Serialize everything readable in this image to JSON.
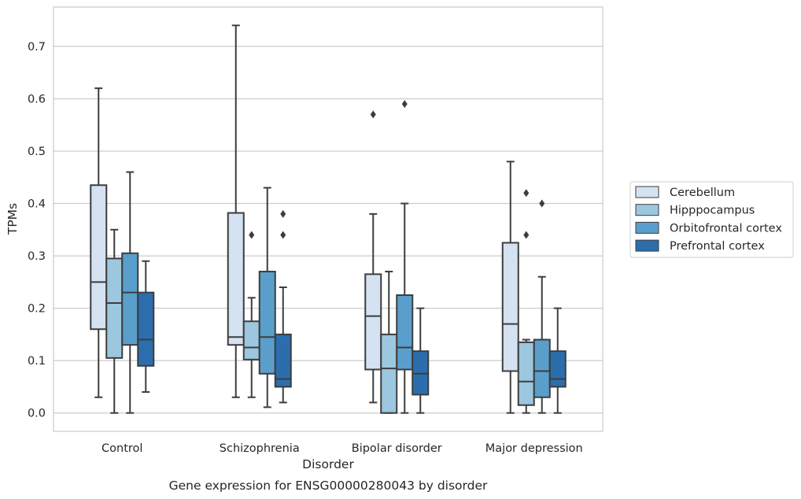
{
  "chart_data": {
    "type": "box",
    "title": "",
    "caption": "Gene expression for ENSG00000280043 by disorder",
    "xlabel": "Disorder",
    "ylabel": "TPMs",
    "ylim": [
      -0.035,
      0.775
    ],
    "yticks": [
      0.0,
      0.1,
      0.2,
      0.3,
      0.4,
      0.5,
      0.6,
      0.7
    ],
    "ytick_labels": [
      "0.0",
      "0.1",
      "0.2",
      "0.3",
      "0.4",
      "0.5",
      "0.6",
      "0.7"
    ],
    "grid": "horizontal",
    "legend_placement": "right",
    "categories": [
      "Control",
      "Schizophrenia",
      "Bipolar disorder",
      "Major depression"
    ],
    "series": [
      {
        "name": "Cerebellum",
        "color": "#d4e2f1",
        "boxes": [
          {
            "whislo": 0.03,
            "q1": 0.16,
            "med": 0.25,
            "q3": 0.435,
            "whishi": 0.62,
            "fliers": []
          },
          {
            "whislo": 0.03,
            "q1": 0.13,
            "med": 0.145,
            "q3": 0.382,
            "whishi": 0.74,
            "fliers": []
          },
          {
            "whislo": 0.02,
            "q1": 0.083,
            "med": 0.185,
            "q3": 0.265,
            "whishi": 0.38,
            "fliers": [
              0.57
            ]
          },
          {
            "whislo": 0.0,
            "q1": 0.08,
            "med": 0.17,
            "q3": 0.325,
            "whishi": 0.48,
            "fliers": []
          }
        ]
      },
      {
        "name": "Hipppocampus",
        "color": "#9cc7de",
        "boxes": [
          {
            "whislo": 0.0,
            "q1": 0.105,
            "med": 0.21,
            "q3": 0.295,
            "whishi": 0.35,
            "fliers": []
          },
          {
            "whislo": 0.03,
            "q1": 0.102,
            "med": 0.125,
            "q3": 0.175,
            "whishi": 0.22,
            "fliers": [
              0.34
            ]
          },
          {
            "whislo": 0.0,
            "q1": 0.0,
            "med": 0.085,
            "q3": 0.15,
            "whishi": 0.27,
            "fliers": []
          },
          {
            "whislo": 0.0,
            "q1": 0.015,
            "med": 0.06,
            "q3": 0.135,
            "whishi": 0.14,
            "fliers": [
              0.34,
              0.42
            ]
          }
        ]
      },
      {
        "name": "Orbitofrontal cortex",
        "color": "#5a9fcb",
        "boxes": [
          {
            "whislo": 0.0,
            "q1": 0.13,
            "med": 0.23,
            "q3": 0.305,
            "whishi": 0.46,
            "fliers": []
          },
          {
            "whislo": 0.011,
            "q1": 0.075,
            "med": 0.145,
            "q3": 0.27,
            "whishi": 0.43,
            "fliers": []
          },
          {
            "whislo": 0.0,
            "q1": 0.083,
            "med": 0.125,
            "q3": 0.225,
            "whishi": 0.4,
            "fliers": [
              0.59
            ]
          },
          {
            "whislo": 0.0,
            "q1": 0.03,
            "med": 0.08,
            "q3": 0.14,
            "whishi": 0.26,
            "fliers": [
              0.4
            ]
          }
        ]
      },
      {
        "name": "Prefrontal cortex",
        "color": "#2c6ead",
        "boxes": [
          {
            "whislo": 0.04,
            "q1": 0.09,
            "med": 0.14,
            "q3": 0.23,
            "whishi": 0.29,
            "fliers": []
          },
          {
            "whislo": 0.02,
            "q1": 0.05,
            "med": 0.065,
            "q3": 0.15,
            "whishi": 0.24,
            "fliers": [
              0.34,
              0.38
            ]
          },
          {
            "whislo": 0.0,
            "q1": 0.035,
            "med": 0.075,
            "q3": 0.118,
            "whishi": 0.2,
            "fliers": []
          },
          {
            "whislo": 0.0,
            "q1": 0.05,
            "med": 0.065,
            "q3": 0.118,
            "whishi": 0.2,
            "fliers": []
          }
        ]
      }
    ]
  }
}
